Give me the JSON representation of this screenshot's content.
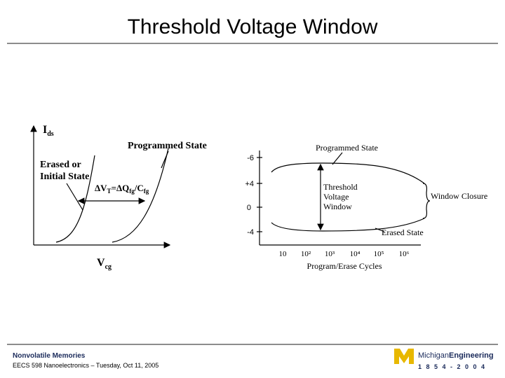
{
  "title": "Threshold Voltage Window",
  "left_figure": {
    "y_axis": {
      "main": "I",
      "sub": "ds"
    },
    "x_axis": {
      "main": "V",
      "sub": "cg"
    },
    "programmed_state": "Programmed State",
    "erased_state": [
      "Erased or",
      "Initial State"
    ],
    "equation": [
      "ΔV",
      "T",
      "=ΔQ",
      "fg",
      "/C",
      "fg"
    ]
  },
  "right_figure": {
    "programmed_state": "Programmed State",
    "y_labels": [
      "-6",
      "+4",
      "0",
      "-4"
    ],
    "window_label": [
      "Threshold",
      "Voltage",
      "Window"
    ],
    "window_closure": "Window Closure",
    "erased_state": "Erased State",
    "x_labels": [
      "10",
      "10²",
      "10³",
      "10⁴",
      "10⁵",
      "10⁶"
    ],
    "x_axis_label": "Program/Erase Cycles"
  },
  "footer": {
    "course_title": "Nonvolatile Memories",
    "course_info": "EECS 598 Nanoelectronics – Tuesday, Oct 11, 2005",
    "logo": {
      "michigan": "Michigan",
      "engineering": "Engineering",
      "years": "1 8 5 4 - 2 0 0 4"
    }
  }
}
